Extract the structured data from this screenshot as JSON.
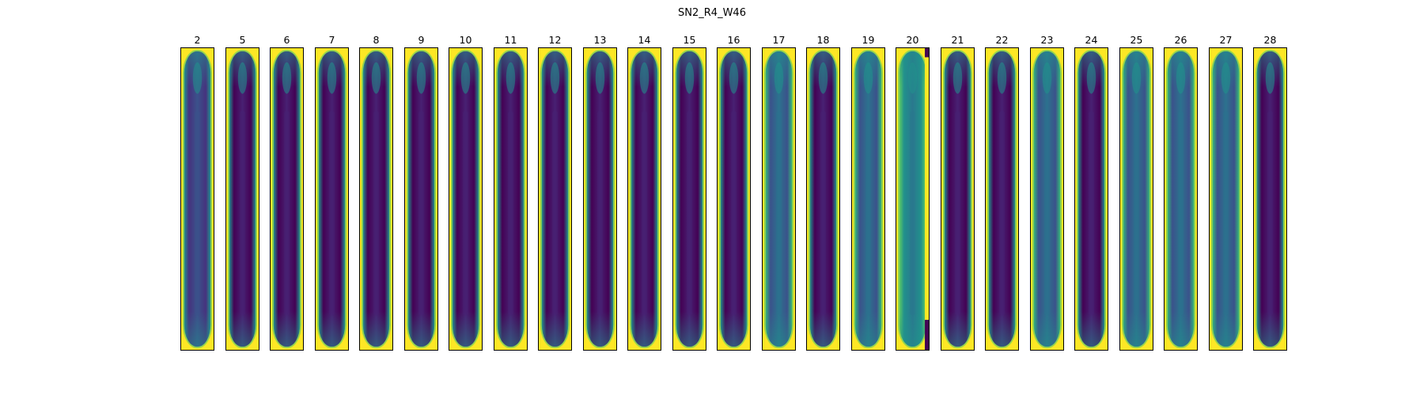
{
  "figure": {
    "title": "SN2_R4_W46",
    "colors": {
      "background": "#ffffff",
      "frame": "#000000",
      "viridis_low": "#440154",
      "viridis_mid": "#21918c",
      "viridis_high": "#fde725"
    },
    "panels": [
      {
        "label": "2",
        "tone": "light"
      },
      {
        "label": "5",
        "tone": "dark"
      },
      {
        "label": "6",
        "tone": "dark"
      },
      {
        "label": "7",
        "tone": "dark"
      },
      {
        "label": "8",
        "tone": "dark"
      },
      {
        "label": "9",
        "tone": "dark"
      },
      {
        "label": "10",
        "tone": "dark"
      },
      {
        "label": "11",
        "tone": "dark"
      },
      {
        "label": "12",
        "tone": "dark"
      },
      {
        "label": "13",
        "tone": "dark"
      },
      {
        "label": "14",
        "tone": "dark"
      },
      {
        "label": "15",
        "tone": "dark"
      },
      {
        "label": "16",
        "tone": "dark"
      },
      {
        "label": "17",
        "tone": "mid"
      },
      {
        "label": "18",
        "tone": "dark"
      },
      {
        "label": "19",
        "tone": "mid"
      },
      {
        "label": "20",
        "tone": "teal"
      },
      {
        "label": "21",
        "tone": "dark"
      },
      {
        "label": "22",
        "tone": "dark"
      },
      {
        "label": "23",
        "tone": "mid"
      },
      {
        "label": "24",
        "tone": "dark"
      },
      {
        "label": "25",
        "tone": "mid"
      },
      {
        "label": "26",
        "tone": "mid"
      },
      {
        "label": "27",
        "tone": "mid"
      },
      {
        "label": "28",
        "tone": "dark"
      }
    ]
  }
}
